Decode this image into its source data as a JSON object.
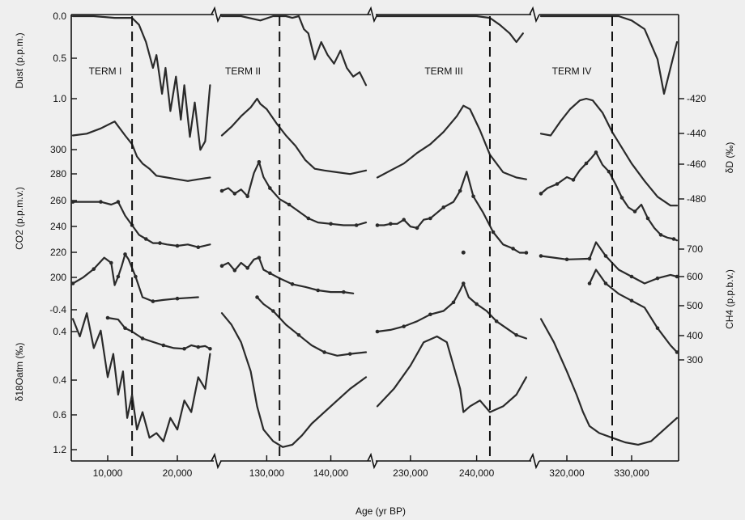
{
  "chart_data": {
    "type": "line",
    "title": "",
    "xlabel": "Age (yr BP)",
    "x_segments": [
      {
        "range": [
          5000,
          25000
        ],
        "ticks": [
          {
            "value": 10000,
            "label": "10,000"
          },
          {
            "value": 20000,
            "label": "20,000"
          }
        ]
      },
      {
        "range": [
          123000,
          146000
        ],
        "ticks": [
          {
            "value": 130000,
            "label": "130,000"
          },
          {
            "value": 140000,
            "label": "140,000"
          }
        ]
      },
      {
        "range": [
          225000,
          248000
        ],
        "ticks": [
          {
            "value": 230000,
            "label": "230,000"
          },
          {
            "value": 240000,
            "label": "240,000"
          }
        ]
      },
      {
        "range": [
          316000,
          337000
        ],
        "ticks": [
          {
            "value": 320000,
            "label": "320,000"
          },
          {
            "value": 330000,
            "label": "330,000"
          }
        ]
      }
    ],
    "axes": {
      "dust": {
        "label": "Dust (p.p.m.)",
        "side": "left",
        "ticks": [
          "0.0",
          "0.5",
          "1.0"
        ]
      },
      "co2": {
        "label": "CO2 (p.p.m.v.)",
        "side": "left",
        "ticks": [
          "300",
          "280",
          "260",
          "240",
          "220",
          "200"
        ]
      },
      "d18o": {
        "label": "δ18Oatm (‰)",
        "side": "left",
        "ticks": [
          "-0.4",
          "0.4",
          "0.4",
          "0.6",
          "1.2"
        ]
      },
      "dD": {
        "label": "δD (‰)",
        "side": "right",
        "ticks": [
          "-420",
          "-440",
          "-460",
          "-480"
        ]
      },
      "ch4": {
        "label": "CH4 (p.p.b.v.)",
        "side": "right",
        "ticks": [
          "700",
          "600",
          "500",
          "400",
          "300"
        ]
      }
    },
    "terminations": [
      {
        "label": "TERM I",
        "segment": 0,
        "x": 13500
      },
      {
        "label": "TERM II",
        "segment": 1,
        "x": 132000
      },
      {
        "label": "TERM III",
        "segment": 2,
        "x": 242000
      },
      {
        "label": "TERM IV",
        "segment": 3,
        "x": 327000
      }
    ],
    "series": [
      {
        "key": "dust",
        "axis": "dust",
        "segments": [
          {
            "x": [
              5000,
              8000,
              11000,
              13500,
              14500,
              15500,
              16500,
              17000,
              17800,
              18300,
              19000,
              19800,
              20500,
              21000,
              21800,
              22500,
              23300,
              24000,
              24700
            ],
            "y": [
              0.0,
              0.0,
              0.02,
              0.02,
              0.1,
              0.3,
              0.6,
              0.45,
              0.9,
              0.6,
              1.1,
              0.7,
              1.2,
              0.8,
              1.4,
              1.0,
              1.55,
              1.45,
              0.8
            ]
          },
          {
            "x": [
              123000,
              126000,
              129000,
              131000,
              133000,
              134000,
              135000,
              135800,
              136500,
              137500,
              138500,
              139500,
              140500,
              141500,
              142500,
              143500,
              144500,
              145500
            ],
            "y": [
              0.0,
              0.0,
              0.05,
              0.0,
              0.0,
              0.02,
              0.0,
              0.15,
              0.2,
              0.5,
              0.3,
              0.45,
              0.55,
              0.4,
              0.6,
              0.7,
              0.65,
              0.8
            ]
          },
          {
            "x": [
              225000,
              230000,
              236000,
              240000,
              242000,
              243500,
              245000,
              246000,
              247000
            ],
            "y": [
              0.0,
              0.0,
              0.0,
              0.0,
              0.02,
              0.1,
              0.2,
              0.3,
              0.2
            ]
          },
          {
            "x": [
              316000,
              322000,
              326000,
              328000,
              330000,
              332000,
              334000,
              335000,
              336000,
              337000
            ],
            "y": [
              0.0,
              0.0,
              0.0,
              0.0,
              0.05,
              0.15,
              0.5,
              0.9,
              0.6,
              0.3
            ]
          }
        ]
      },
      {
        "key": "dD",
        "axis": "dD",
        "segments": [
          {
            "x": [
              5000,
              7000,
              9000,
              11000,
              12500,
              13500,
              14200,
              15000,
              16000,
              17000,
              18500,
              20000,
              21500,
              23000,
              24700
            ],
            "y": [
              -441,
              -440,
              -437,
              -433,
              -441,
              -446,
              -453,
              -457,
              -460,
              -464,
              -465,
              -466,
              -467,
              -466,
              -465
            ]
          },
          {
            "x": [
              123000,
              124500,
              126000,
              127500,
              128500,
              129000,
              130000,
              131500,
              133000,
              134500,
              136000,
              137500,
              139000,
              141000,
              143000,
              145500
            ],
            "y": [
              -441,
              -436,
              -430,
              -425,
              -420,
              -423,
              -426,
              -434,
              -441,
              -447,
              -455,
              -460,
              -461,
              -462,
              -463,
              -461
            ]
          },
          {
            "x": [
              225000,
              227000,
              229000,
              231000,
              233000,
              235000,
              237000,
              238000,
              239000,
              240500,
              242000,
              244000,
              246000,
              247500
            ],
            "y": [
              -465,
              -461,
              -457,
              -451,
              -446,
              -439,
              -430,
              -424,
              -426,
              -438,
              -452,
              -462,
              -465,
              -466
            ]
          },
          {
            "x": [
              316000,
              317500,
              319000,
              320500,
              322000,
              323000,
              324000,
              325500,
              327000,
              328500,
              330000,
              332000,
              334000,
              336000,
              337000
            ],
            "y": [
              -440,
              -441,
              -433,
              -426,
              -421,
              -420,
              -421,
              -428,
              -439,
              -448,
              -457,
              -467,
              -476,
              -481,
              -481
            ]
          }
        ]
      },
      {
        "key": "co2",
        "axis": "co2",
        "segments": [
          {
            "x": [
              5000,
              7000,
              9000,
              10500,
              11500,
              12500,
              13500,
              14500,
              15500,
              16500,
              17500,
              18500,
              20000,
              21500,
              23000,
              24700
            ],
            "y": [
              262,
              262,
              262,
              260,
              262,
              252,
              245,
              238,
              235,
              232,
              232,
              231,
              230,
              231,
              229,
              231
            ]
          },
          {
            "x": [
              123000,
              124000,
              125000,
              126000,
              127000,
              128000,
              128800,
              129500,
              130500,
              132000,
              133500,
              135000,
              136500,
              138000,
              140000,
              142000,
              144000,
              145500
            ],
            "y": [
              270,
              272,
              268,
              271,
              266,
              283,
              291,
              280,
              272,
              264,
              260,
              255,
              250,
              247,
              246,
              245,
              245,
              247
            ]
          },
          {
            "x": [
              225000,
              226000,
              227000,
              228000,
              229000,
              230000,
              231000,
              232000,
              233000,
              234000,
              235000,
              236500,
              237500,
              238500,
              239500,
              241000,
              242500,
              244000,
              245500,
              246500,
              247500
            ],
            "y": [
              245,
              245,
              246,
              246,
              249,
              244,
              243,
              249,
              250,
              254,
              258,
              262,
              270,
              284,
              266,
              254,
              240,
              231,
              228,
              225,
              225
            ]
          },
          {
            "x": [
              316000,
              317000,
              318500,
              320000,
              321000,
              322000,
              323000,
              323800,
              324500,
              325500,
              326500,
              327500,
              328500,
              329500,
              330500,
              331500,
              332500,
              333500,
              334500,
              335500,
              336500,
              337000
            ],
            "y": [
              268,
              272,
              275,
              280,
              278,
              285,
              290,
              294,
              298,
              289,
              284,
              275,
              265,
              258,
              255,
              260,
              250,
              243,
              238,
              236,
              235,
              234
            ]
          }
        ]
      },
      {
        "key": "ch4",
        "axis": "ch4",
        "segments": [
          {
            "x": [
              5000,
              6500,
              8000,
              9500,
              10500,
              11000,
              11500,
              12000,
              12500,
              13000,
              14000,
              15000,
              16500,
              18000,
              20000,
              23000
            ],
            "y": [
              600,
              618,
              642,
              675,
              660,
              595,
              620,
              650,
              685,
              670,
              620,
              560,
              548,
              552,
              556,
              560
            ]
          },
          {
            "x": [
              123000,
              124000,
              125000,
              126000,
              127000,
              128000,
              128800,
              129500,
              130500,
              132000,
              134000,
              136000,
              138000,
              140000,
              142000,
              143500
            ],
            "y": [
              651,
              660,
              638,
              660,
              645,
              670,
              675,
              640,
              630,
              615,
              598,
              590,
              580,
              575,
              575,
              571
            ]
          },
          {
            "x": [
              238000
            ],
            "y": [
              690
            ]
          },
          {
            "x": [
              316000,
              318000,
              320000,
              322000,
              323500,
              324500,
              326000,
              328000,
              330000,
              332000,
              334000,
              336000,
              337000
            ],
            "y": [
              680,
              675,
              670,
              671,
              672,
              720,
              680,
              640,
              620,
              600,
              615,
              625,
              620
            ]
          }
        ]
      },
      {
        "key": "ch4_lower",
        "axis": "ch4",
        "segments": [
          {
            "x": [
              10000,
              11500,
              12500,
              13500,
              15000,
              16500,
              18000,
              19500,
              21000,
              22000,
              23000,
              24000,
              24700
            ],
            "y": [
              500,
              495,
              470,
              460,
              440,
              430,
              420,
              412,
              410,
              420,
              415,
              418,
              410
            ]
          },
          {
            "x": [
              128500,
              129500,
              131000,
              133000,
              135000,
              137000,
              139000,
              141000,
              143000,
              145500
            ],
            "y": [
              560,
              540,
              520,
              480,
              450,
              420,
              400,
              390,
              395,
              400
            ]
          },
          {
            "x": [
              225000,
              227000,
              229000,
              231000,
              233000,
              235000,
              236500,
              237500,
              238000,
              238800,
              240000,
              241500,
              243000,
              244500,
              246000,
              247500
            ],
            "y": [
              460,
              465,
              475,
              490,
              510,
              520,
              545,
              580,
              600,
              560,
              540,
              520,
              490,
              470,
              450,
              440
            ]
          },
          {
            "x": [
              323500,
              324500,
              326000,
              328000,
              330000,
              332000,
              334000,
              336000,
              337000
            ],
            "y": [
              600,
              640,
              600,
              570,
              550,
              530,
              470,
              420,
              400
            ]
          }
        ]
      },
      {
        "key": "d18o",
        "axis": "d18o",
        "segments": [
          {
            "x": [
              5000,
              6000,
              7000,
              8000,
              9000,
              10000,
              10800,
              11500,
              12200,
              12800,
              13500,
              14200,
              15000,
              16000,
              17000,
              18000,
              19000,
              20000,
              21000,
              22000,
              23000,
              24000,
              24700
            ],
            "y": [
              0.1,
              0.25,
              0.05,
              0.35,
              0.2,
              0.6,
              0.4,
              0.75,
              0.55,
              0.95,
              0.75,
              1.05,
              0.9,
              1.12,
              1.08,
              1.15,
              0.95,
              1.05,
              0.8,
              0.9,
              0.6,
              0.7,
              0.4
            ]
          },
          {
            "x": [
              123000,
              124500,
              126000,
              127500,
              128500,
              129500,
              131000,
              132500,
              134000,
              135500,
              137000,
              139000,
              141000,
              143000,
              145500
            ],
            "y": [
              0.05,
              0.15,
              0.3,
              0.55,
              0.85,
              1.05,
              1.15,
              1.2,
              1.18,
              1.1,
              1.0,
              0.9,
              0.8,
              0.7,
              0.6
            ]
          },
          {
            "x": [
              225000,
              227500,
              230000,
              232000,
              234000,
              235500,
              236500,
              237500,
              238000,
              239000,
              240500,
              242000,
              244000,
              246000,
              247500
            ],
            "y": [
              0.85,
              0.7,
              0.5,
              0.3,
              0.25,
              0.3,
              0.5,
              0.7,
              0.9,
              0.85,
              0.8,
              0.9,
              0.85,
              0.75,
              0.6
            ]
          },
          {
            "x": [
              316000,
              318000,
              320000,
              321500,
              322500,
              323500,
              325000,
              327000,
              329000,
              331000,
              333000,
              335000,
              337000
            ],
            "y": [
              0.1,
              0.3,
              0.55,
              0.75,
              0.9,
              1.02,
              1.08,
              1.12,
              1.16,
              1.18,
              1.15,
              1.05,
              0.95
            ]
          }
        ]
      }
    ]
  }
}
